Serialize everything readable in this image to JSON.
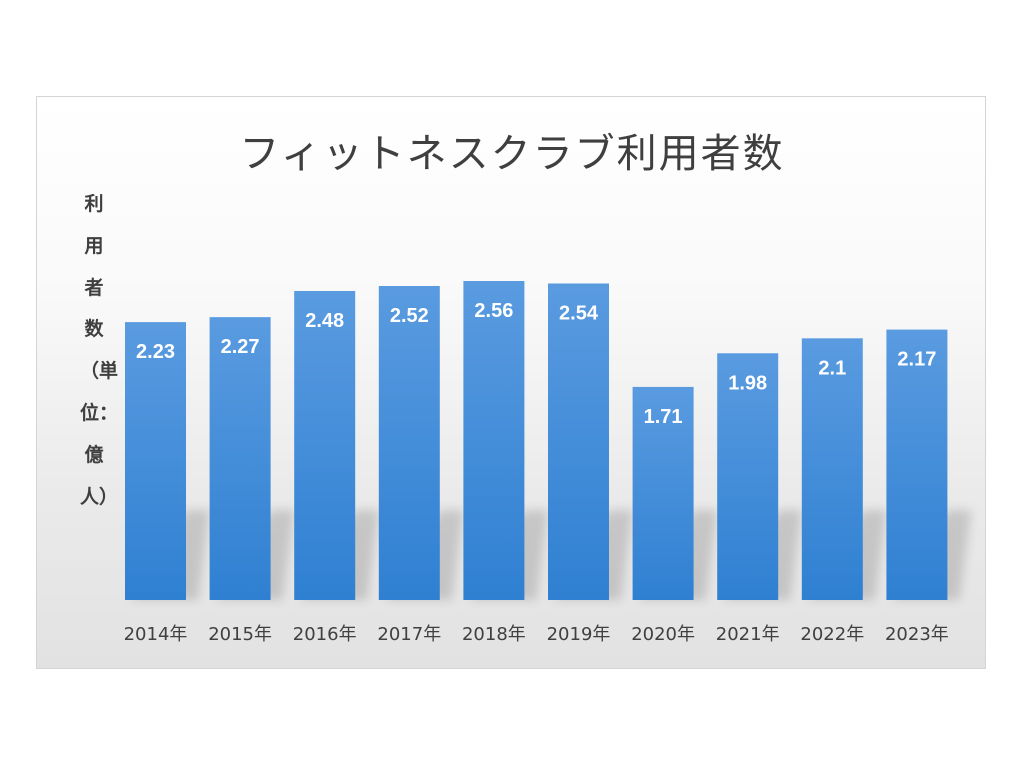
{
  "chart_data": {
    "type": "bar",
    "title": "フィットネスクラブ利用者数",
    "ylabel": "利用者数（単位：億人）",
    "xlabel": "",
    "categories": [
      "2014年",
      "2015年",
      "2016年",
      "2017年",
      "2018年",
      "2019年",
      "2020年",
      "2021年",
      "2022年",
      "2023年"
    ],
    "values": [
      2.23,
      2.27,
      2.48,
      2.52,
      2.56,
      2.54,
      1.71,
      1.98,
      2.1,
      2.17
    ],
    "data_labels": [
      "2.23",
      "2.27",
      "2.48",
      "2.52",
      "2.56",
      "2.54",
      "1.71",
      "1.98",
      "2.1",
      "2.17"
    ],
    "ylim": [
      0,
      2.56
    ],
    "grid": false,
    "legend": "none",
    "bar_color": "#4a90d9",
    "bar_color_dark": "#2f7fd0"
  }
}
